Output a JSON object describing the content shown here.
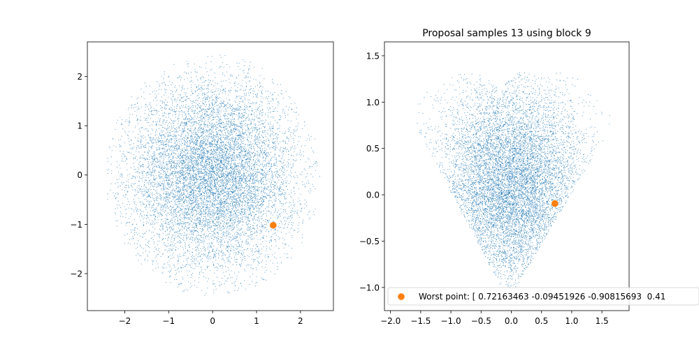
{
  "chart_data": [
    {
      "type": "scatter",
      "title": "",
      "xlabel": "",
      "ylabel": "",
      "xlim": [
        -2.85,
        2.75
      ],
      "ylim": [
        -2.75,
        2.7
      ],
      "xticks": [
        -2,
        -1,
        0,
        1,
        2
      ],
      "yticks": [
        -2,
        -1,
        0,
        1,
        2
      ],
      "xtick_labels": [
        "−2",
        "−1",
        "0",
        "1",
        "2"
      ],
      "ytick_labels": [
        "−2",
        "−1",
        "0",
        "1",
        "2"
      ],
      "samples": {
        "shape": "disc",
        "count": 10000,
        "center": [
          0,
          0
        ],
        "radius": 2.45,
        "color": "#1f77b4"
      },
      "highlight": {
        "x": 1.38,
        "y": -1.02,
        "color": "#ff7f0e"
      }
    },
    {
      "type": "scatter",
      "title": "Proposal samples 13 using block 9",
      "xlabel": "",
      "ylabel": "",
      "xlim": [
        -2.1,
        1.95
      ],
      "ylim": [
        -1.25,
        1.65
      ],
      "xticks": [
        -2.0,
        -1.5,
        -1.0,
        -0.5,
        0.0,
        0.5,
        1.0,
        1.5
      ],
      "yticks": [
        -1.0,
        -0.5,
        0.0,
        0.5,
        1.0,
        1.5
      ],
      "xtick_labels": [
        "−2.0",
        "−1.5",
        "−1.0",
        "−0.5",
        "0.0",
        "0.5",
        "1.0",
        "1.5"
      ],
      "ytick_labels": [
        "−1.0",
        "−0.5",
        "0.0",
        "0.5",
        "1.0",
        "1.5"
      ],
      "samples": {
        "shape": "heart",
        "count": 9000,
        "color": "#1f77b4"
      },
      "highlight": {
        "x": 0.72163463,
        "y": -0.09451926,
        "color": "#ff7f0e"
      },
      "legend": {
        "location": "bottom-left",
        "label": "Worst point: [ 0.72163463 -0.09451926 -0.90815693  0.41"
      }
    }
  ]
}
